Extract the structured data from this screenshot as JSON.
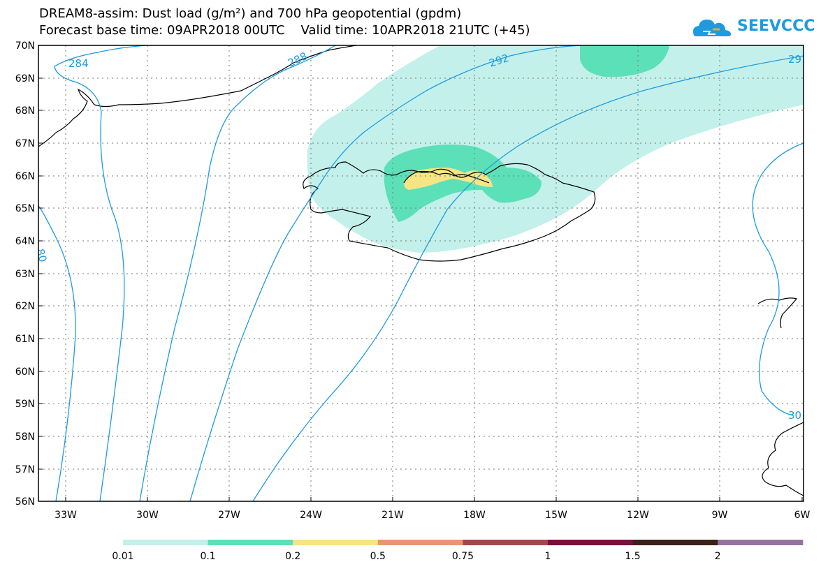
{
  "header": {
    "title_line1": "DREAM8-assim: Dust load (g/m²) and 700 hPa geopotential (gpdm)",
    "title_line2": "Forecast base time: 09APR2018 00UTC    Valid time: 10APR2018 21UTC (+45)"
  },
  "logo": {
    "text": "SEEVCCC",
    "icon": "cloud-icon",
    "color": "#1e9be0"
  },
  "map": {
    "lat_labels": [
      "70N",
      "69N",
      "68N",
      "67N",
      "66N",
      "65N",
      "64N",
      "63N",
      "62N",
      "61N",
      "60N",
      "59N",
      "58N",
      "57N",
      "56N"
    ],
    "lon_labels": [
      "33W",
      "30W",
      "27W",
      "24W",
      "21W",
      "18W",
      "15W",
      "12W",
      "9W",
      "6W"
    ],
    "contour_labels": [
      "284",
      "288",
      "292",
      "29",
      "80",
      "30"
    ],
    "contour_color": "#1e9be0"
  },
  "colorbar": {
    "colors": [
      "#c3f0ea",
      "#5ce0b8",
      "#f5e585",
      "#e69577",
      "#9e4a4c",
      "#7a0f3a",
      "#3a2218",
      "#93739e"
    ],
    "labels": [
      "0.01",
      "0.1",
      "0.2",
      "0.5",
      "0.75",
      "1",
      "1.5",
      "2"
    ]
  }
}
